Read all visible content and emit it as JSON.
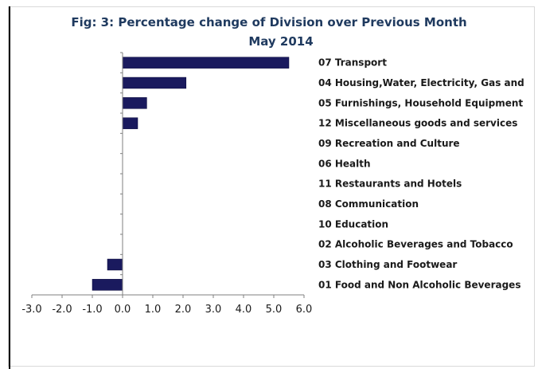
{
  "chart_data": {
    "type": "bar",
    "orientation": "horizontal",
    "title": "Fig: 3: Percentage change of Division over Previous Month",
    "subtitle": "May 2014",
    "categories": [
      "07 Transport",
      "04 Housing,Water, Electricity, Gas and",
      "05 Furnishings, Household Equipment",
      "12 Miscellaneous goods and services",
      "09 Recreation and Culture",
      "06 Health",
      "11 Restaurants and Hotels",
      "08 Communication",
      "10 Education",
      "02 Alcoholic Beverages and Tobacco",
      "03 Clothing and Footwear",
      "01 Food and Non Alcoholic Beverages"
    ],
    "values": [
      5.5,
      2.1,
      0.8,
      0.5,
      0.0,
      0.0,
      0.0,
      0.0,
      0.0,
      0.0,
      -0.5,
      -1.0
    ],
    "xlim": [
      -3.0,
      6.0
    ],
    "x_ticks": [
      "-3.0",
      "-2.0",
      "-1.0",
      "0.0",
      "1.0",
      "2.0",
      "3.0",
      "4.0",
      "5.0",
      "6.0"
    ],
    "bar_color": "#1a1a5e",
    "xlabel": "",
    "ylabel": "",
    "grid": false,
    "legend": "none"
  }
}
